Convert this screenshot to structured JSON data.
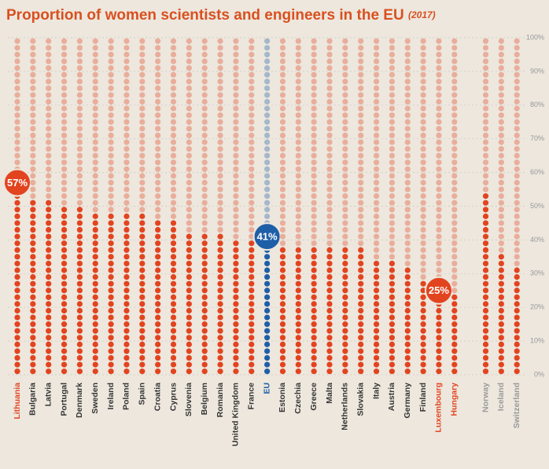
{
  "chart_data": {
    "type": "dot-column",
    "title": "Proportion of women scientists and engineers in the EU",
    "title_note": "(2017)",
    "categories": [
      "Lithuania",
      "Bulgaria",
      "Latvia",
      "Portugal",
      "Denmark",
      "Sweden",
      "Ireland",
      "Poland",
      "Spain",
      "Croatia",
      "Cyprus",
      "Slovenia",
      "Belgium",
      "Romania",
      "United Kingdom",
      "France",
      "EU",
      "Estonia",
      "Czechia",
      "Greece",
      "Malta",
      "Netherlands",
      "Slovakia",
      "Italy",
      "Austria",
      "Germany",
      "Finland",
      "Luxembourg",
      "Hungary",
      null,
      "Norway",
      "Iceland",
      "Switzerland"
    ],
    "values": [
      57,
      53,
      53,
      51,
      50,
      49,
      49,
      48,
      48,
      46,
      46,
      43,
      43,
      42,
      41,
      41,
      41,
      39,
      39,
      38,
      38,
      38,
      38,
      35,
      34,
      33,
      29,
      25,
      25,
      null,
      54,
      36,
      33
    ],
    "value_labels": [
      "57%",
      null,
      null,
      null,
      null,
      null,
      null,
      null,
      null,
      null,
      null,
      null,
      null,
      null,
      null,
      null,
      "41%",
      null,
      null,
      null,
      null,
      null,
      null,
      null,
      null,
      null,
      null,
      "25%",
      null,
      null,
      null,
      null,
      null
    ],
    "colors": [
      "#e2441f",
      "#e2441f",
      "#e2441f",
      "#e2441f",
      "#e2441f",
      "#e2441f",
      "#e2441f",
      "#e2441f",
      "#e2441f",
      "#e2441f",
      "#e2441f",
      "#e2441f",
      "#e2441f",
      "#e2441f",
      "#e2441f",
      "#e2441f",
      "#1f5fa8",
      "#e2441f",
      "#e2441f",
      "#e2441f",
      "#e2441f",
      "#e2441f",
      "#e2441f",
      "#e2441f",
      "#e2441f",
      "#e2441f",
      "#e2441f",
      "#e2441f",
      "#e2441f",
      null,
      "#e2441f",
      "#e2441f",
      "#e2441f"
    ],
    "label_colors": [
      "#e2441f",
      "#333333",
      "#333333",
      "#333333",
      "#333333",
      "#333333",
      "#333333",
      "#333333",
      "#333333",
      "#333333",
      "#333333",
      "#333333",
      "#333333",
      "#333333",
      "#333333",
      "#333333",
      "#1f5fa8",
      "#333333",
      "#333333",
      "#333333",
      "#333333",
      "#333333",
      "#333333",
      "#333333",
      "#333333",
      "#333333",
      "#333333",
      "#e2441f",
      "#e2441f",
      null,
      "#999999",
      "#999999",
      "#999999"
    ],
    "ylim": [
      0,
      100
    ],
    "yticks": [
      {
        "value": 0,
        "label": "0%"
      },
      {
        "value": 10,
        "label": "10%"
      },
      {
        "value": 20,
        "label": "20%"
      },
      {
        "value": 30,
        "label": "30%"
      },
      {
        "value": 40,
        "label": "40%"
      },
      {
        "value": 50,
        "label": "50%"
      },
      {
        "value": 60,
        "label": "60%"
      },
      {
        "value": 70,
        "label": "70%"
      },
      {
        "value": 80,
        "label": "80%"
      },
      {
        "value": 90,
        "label": "90%"
      },
      {
        "value": 100,
        "label": "100%"
      }
    ],
    "grid": true
  }
}
